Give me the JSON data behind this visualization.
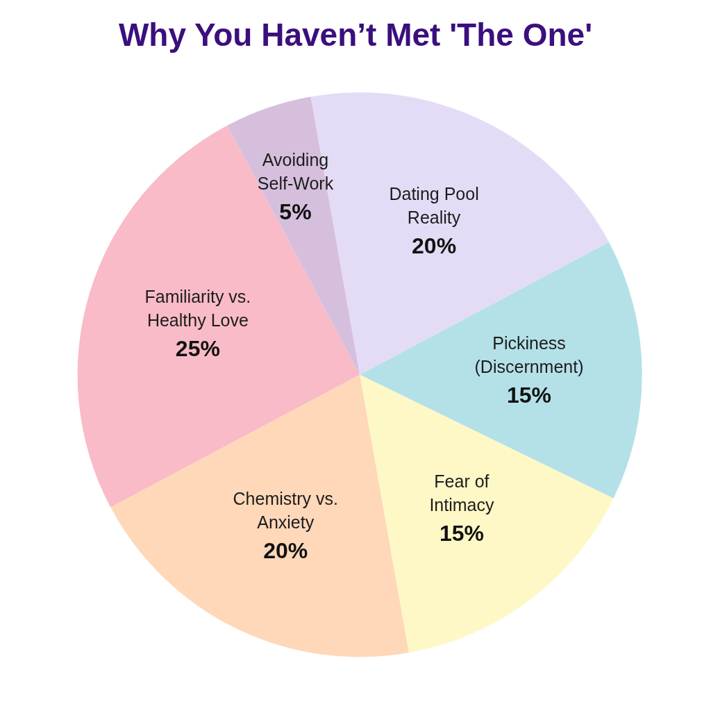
{
  "chart_data": {
    "type": "pie",
    "title": "Why You Haven’t Met 'The One'",
    "categories": [
      "Dating Pool Reality",
      "Pickiness (Discernment)",
      "Fear of Intimacy",
      "Chemistry vs. Anxiety",
      "Familiarity vs. Healthy Love",
      "Avoiding Self-Work"
    ],
    "values": [
      20,
      15,
      15,
      20,
      25,
      5
    ],
    "value_labels": [
      "20%",
      "15%",
      "15%",
      "20%",
      "25%",
      "5%"
    ],
    "colors": [
      "#e4dcf6",
      "#b3e1e7",
      "#fef8c6",
      "#fed8b9",
      "#f8bbc7",
      "#d6bfdd"
    ]
  }
}
